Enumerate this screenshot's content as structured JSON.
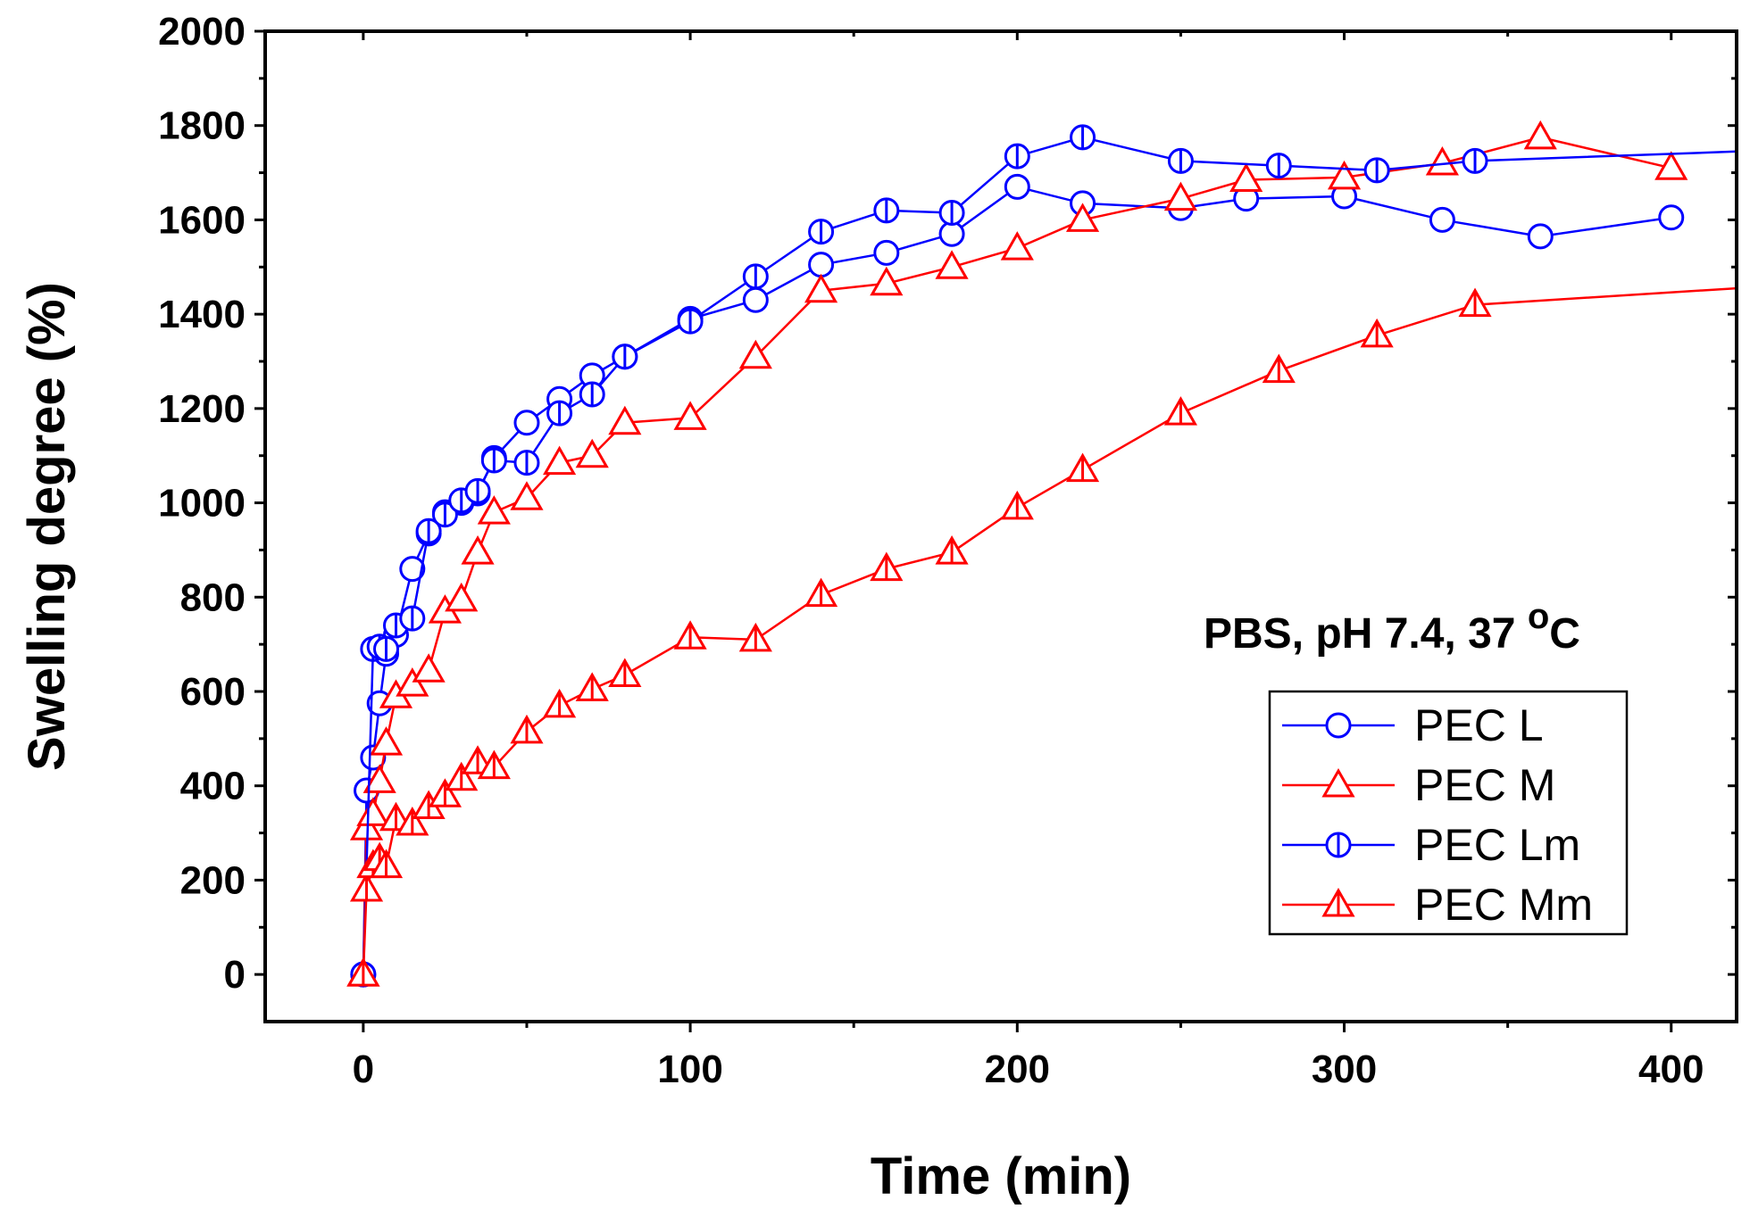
{
  "chart_data": {
    "type": "line",
    "title": "",
    "xlabel": "Time (min)",
    "ylabel": "Swelling degree (%)",
    "xlim": [
      -30,
      420
    ],
    "ylim": [
      -100,
      2000
    ],
    "xticks": [
      0,
      100,
      200,
      300,
      400
    ],
    "yticks": [
      0,
      200,
      400,
      600,
      800,
      1000,
      1200,
      1400,
      1600,
      1800,
      2000
    ],
    "annotation": {
      "text": "PBS, pH 7.4, 37 ",
      "sup": "o",
      "tail": "C"
    },
    "legend_position": "right",
    "series": [
      {
        "name": "PEC L",
        "color": "#0000ff",
        "marker": "circle",
        "x": [
          0,
          1,
          3,
          5,
          7,
          10,
          15,
          20,
          25,
          30,
          35,
          40,
          50,
          60,
          70,
          80,
          100,
          120,
          140,
          160,
          180,
          200,
          220,
          250,
          270,
          300,
          330,
          360,
          400
        ],
        "y": [
          0,
          390,
          460,
          575,
          680,
          720,
          860,
          935,
          980,
          1000,
          1020,
          1095,
          1170,
          1220,
          1270,
          1310,
          1390,
          1430,
          1505,
          1530,
          1570,
          1670,
          1635,
          1625,
          1645,
          1650,
          1600,
          1565,
          1605
        ]
      },
      {
        "name": "PEC M",
        "color": "#ff0000",
        "marker": "triangle",
        "x": [
          0,
          1,
          3,
          5,
          7,
          10,
          15,
          20,
          25,
          30,
          35,
          40,
          50,
          60,
          70,
          80,
          100,
          120,
          140,
          160,
          180,
          200,
          220,
          250,
          270,
          300,
          330,
          360,
          400
        ],
        "y": [
          0,
          310,
          340,
          410,
          490,
          590,
          615,
          645,
          770,
          795,
          895,
          980,
          1010,
          1085,
          1100,
          1170,
          1180,
          1310,
          1450,
          1465,
          1500,
          1540,
          1600,
          1645,
          1685,
          1690,
          1720,
          1775,
          1710
        ]
      },
      {
        "name": "PEC Lm",
        "color": "#0000ff",
        "marker": "circle-bar",
        "x": [
          0,
          3,
          5,
          7,
          10,
          15,
          20,
          25,
          30,
          35,
          40,
          50,
          60,
          70,
          80,
          100,
          120,
          140,
          160,
          180,
          200,
          220,
          250,
          280,
          310,
          340,
          420
        ],
        "y": [
          0,
          690,
          695,
          690,
          740,
          755,
          940,
          975,
          1005,
          1025,
          1090,
          1085,
          1190,
          1230,
          1310,
          1385,
          1480,
          1575,
          1620,
          1615,
          1735,
          1775,
          1725,
          1715,
          1705,
          1725,
          1745
        ]
      },
      {
        "name": "PEC Mm",
        "color": "#ff0000",
        "marker": "triangle-bar",
        "x": [
          0,
          1,
          3,
          5,
          7,
          10,
          15,
          20,
          25,
          30,
          35,
          40,
          50,
          60,
          70,
          80,
          100,
          120,
          140,
          160,
          180,
          200,
          220,
          250,
          280,
          310,
          340,
          420
        ],
        "y": [
          0,
          180,
          230,
          245,
          230,
          330,
          320,
          355,
          380,
          415,
          450,
          440,
          515,
          570,
          605,
          635,
          715,
          710,
          805,
          860,
          895,
          990,
          1070,
          1190,
          1280,
          1355,
          1420,
          1455
        ]
      }
    ]
  }
}
